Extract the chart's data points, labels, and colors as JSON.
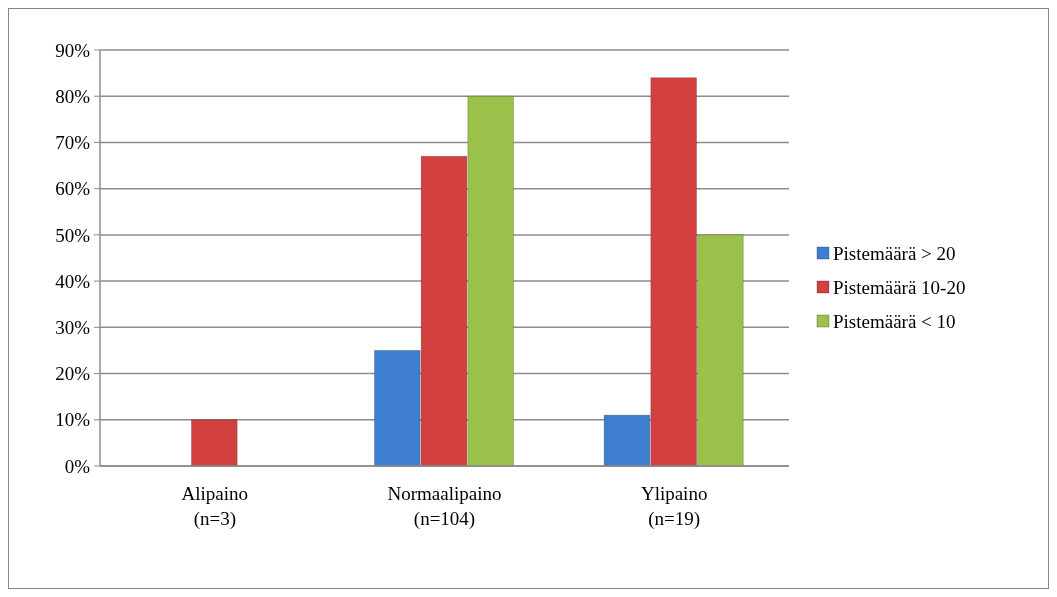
{
  "chart_data": {
    "type": "bar",
    "categories": [
      "Alipaino\n(n=3)",
      "Normaalipaino\n(n=104)",
      "Ylipaino\n(n=19)"
    ],
    "series": [
      {
        "name": "Pistemäärä > 20",
        "color": "#3f7fd0",
        "values": [
          0,
          25,
          11
        ]
      },
      {
        "name": "Pistemäärä 10-20",
        "color": "#d34040",
        "values": [
          10,
          67,
          84
        ]
      },
      {
        "name": "Pistemäärä < 10",
        "color": "#9cc14a",
        "values": [
          0,
          80,
          50
        ]
      }
    ],
    "ylim": [
      0,
      90
    ],
    "yticks": [
      {
        "value": 0,
        "label": "0%"
      },
      {
        "value": 10,
        "label": "10%"
      },
      {
        "value": 20,
        "label": "20%"
      },
      {
        "value": 30,
        "label": "30%"
      },
      {
        "value": 40,
        "label": "40%"
      },
      {
        "value": 50,
        "label": "50%"
      },
      {
        "value": 60,
        "label": "60%"
      },
      {
        "value": 70,
        "label": "70%"
      },
      {
        "value": 80,
        "label": "80%"
      },
      {
        "value": 90,
        "label": "90%"
      }
    ],
    "grid": "y",
    "legend": "right"
  }
}
